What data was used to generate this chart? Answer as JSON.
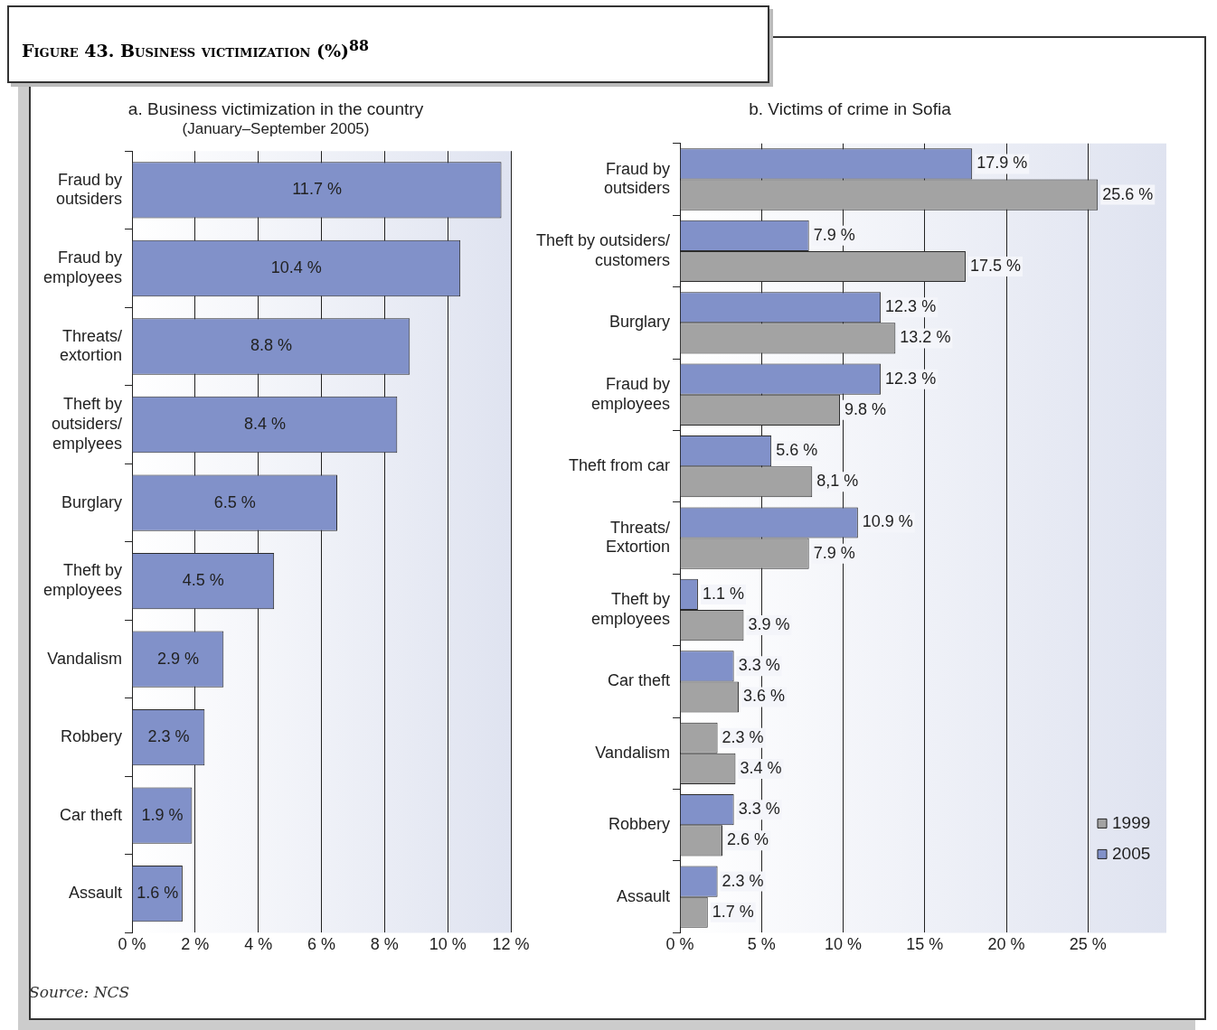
{
  "chart_data": [
    {
      "type": "bar",
      "orientation": "horizontal",
      "title": "a. Business victimization in the country",
      "subtitle": "(January–September 2005)",
      "annotations": [
        "Figure 43. Business victimization (%)$^{88}$",
        "Source: NCS"
      ],
      "categories": [
        "Fraud by\noutsiders",
        "Fraud by\nemployees",
        "Threats/\nextortion",
        "Theft by\noutsiders/\nemplyees",
        "Burglary",
        "Theft by\nemployees",
        "Vandalism",
        "Robbery",
        "Car theft",
        "Assault"
      ],
      "series": [
        {
          "color": "#8191c9",
          "values": [
            11.7,
            10.4,
            8.8,
            8.4,
            6.5,
            4.5,
            2.9,
            2.3,
            1.9,
            1.6
          ],
          "value_labels": [
            "11.7 %",
            "10.4 %",
            "8.8 %",
            "8.4 %",
            "6.5 %",
            "4.5 %",
            "2.9 %",
            "2.3 %",
            "1.9 %",
            "1.6 %"
          ]
        }
      ],
      "xlim": [
        0,
        12
      ],
      "xticks": [
        {
          "value": 0,
          "label": "0 %"
        },
        {
          "value": 2,
          "label": "2 %"
        },
        {
          "value": 4,
          "label": "4 %"
        },
        {
          "value": 6,
          "label": "6 %"
        },
        {
          "value": 8,
          "label": "8 %"
        },
        {
          "value": 10,
          "label": "10 %"
        },
        {
          "value": 12,
          "label": "12 %"
        }
      ],
      "grid": "x",
      "legend": false
    },
    {
      "type": "bar",
      "orientation": "horizontal",
      "title": "b. Victims of crime in Sofia",
      "categories": [
        "Fraud by\noutsiders",
        "Theft by outsiders/\ncustomers",
        "Burglary",
        "Fraud by\nemployees",
        "Theft from car",
        "Threats/\nExtortion",
        "Theft by\nemployees",
        "Car theft",
        "Vandalism",
        "Robbery",
        "Assault"
      ],
      "series": [
        {
          "name": "2005",
          "color": "#8191c9",
          "colors": [
            "#8191c9",
            "#8191c9",
            "#8191c9",
            "#8191c9",
            "#8191c9",
            "#8191c9",
            "#8191c9",
            "#8191c9",
            "#a3a3a3",
            "#8191c9",
            "#8191c9"
          ],
          "values": [
            17.9,
            7.9,
            12.3,
            12.3,
            5.6,
            10.9,
            1.1,
            3.3,
            2.3,
            3.3,
            2.3
          ],
          "value_labels": [
            "17.9 %",
            "7.9 %",
            "12.3 %",
            "12.3 %",
            "5.6 %",
            "10.9 %",
            "1.1 %",
            "3.3 %",
            "2.3 %",
            "3.3 %",
            "2.3 %"
          ]
        },
        {
          "name": "1999",
          "color": "#a3a3a3",
          "values": [
            25.6,
            17.5,
            13.2,
            9.8,
            8.1,
            7.9,
            3.9,
            3.6,
            3.4,
            2.6,
            1.7
          ],
          "value_labels": [
            "25.6 %",
            "17.5 %",
            "13.2 %",
            "9.8 %",
            "8,1 %",
            "7.9 %",
            "3.9 %",
            "3.6 %",
            "3.4 %",
            "2.6 %",
            "1.7 %"
          ]
        }
      ],
      "xlim": [
        0,
        29.8
      ],
      "xticks": [
        {
          "value": 0,
          "label": "0 %"
        },
        {
          "value": 5,
          "label": "5 %"
        },
        {
          "value": 10,
          "label": "10 %"
        },
        {
          "value": 15,
          "label": "15 %"
        },
        {
          "value": 20,
          "label": "20 %"
        },
        {
          "value": 25,
          "label": "25 %"
        }
      ],
      "grid": "x",
      "legend": "bottom right"
    }
  ]
}
